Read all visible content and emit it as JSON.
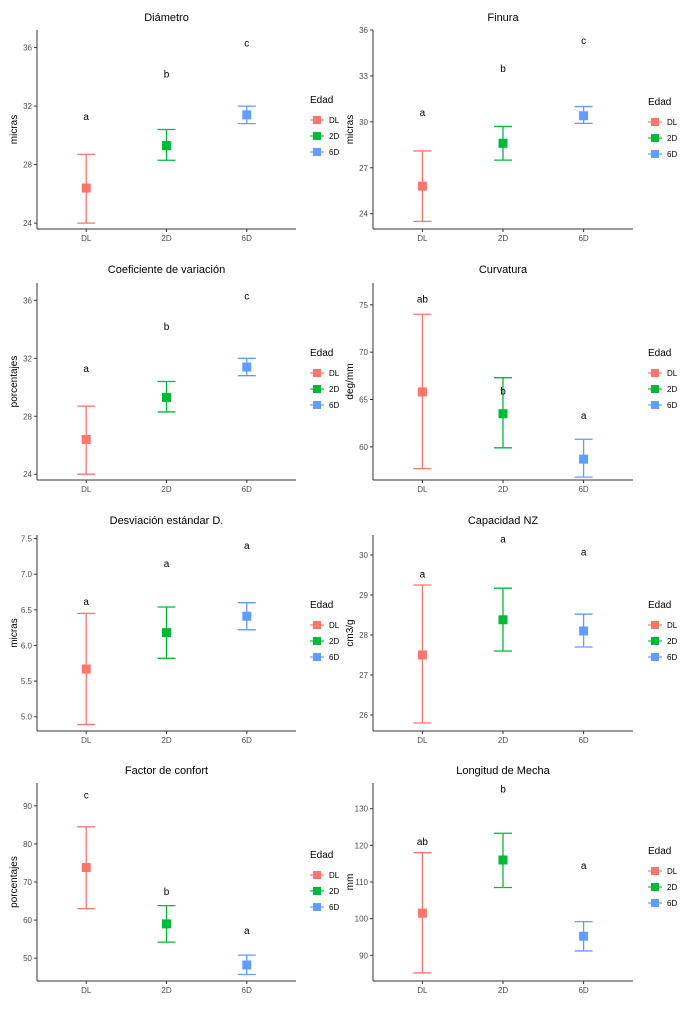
{
  "chart_data": [
    {
      "type": "scatter",
      "title": "Diámetro",
      "ylabel": "micras",
      "categories": [
        "DL",
        "2D",
        "6D"
      ],
      "ylim": [
        23.6,
        37.2
      ],
      "yticks": [
        "24",
        "28",
        "32",
        "36"
      ],
      "ytick_values": [
        24,
        28,
        32,
        36
      ],
      "points": [
        {
          "group": "DL",
          "mean": 26.4,
          "low": 24.0,
          "high": 28.7,
          "letter": "a",
          "letter_y": 31.3
        },
        {
          "group": "2D",
          "mean": 29.3,
          "low": 28.3,
          "high": 30.4,
          "letter": "b",
          "letter_y": 34.2
        },
        {
          "group": "6D",
          "mean": 31.4,
          "low": 30.8,
          "high": 32.0,
          "letter": "c",
          "letter_y": 36.3
        }
      ],
      "legend_title": "Edad",
      "legend": [
        "DL",
        "2D",
        "6D"
      ],
      "grid": false,
      "legend_position": "right"
    },
    {
      "type": "scatter",
      "title": "Finura",
      "ylabel": "micras",
      "categories": [
        "DL",
        "2D",
        "6D"
      ],
      "ylim": [
        23.0,
        36.0
      ],
      "yticks": [
        "24",
        "27",
        "30",
        "33",
        "36"
      ],
      "ytick_values": [
        24,
        27,
        30,
        33,
        36
      ],
      "points": [
        {
          "group": "DL",
          "mean": 25.8,
          "low": 23.5,
          "high": 28.1,
          "letter": "a",
          "letter_y": 30.6
        },
        {
          "group": "2D",
          "mean": 28.6,
          "low": 27.5,
          "high": 29.7,
          "letter": "b",
          "letter_y": 33.5
        },
        {
          "group": "6D",
          "mean": 30.4,
          "low": 29.9,
          "high": 31.0,
          "letter": "c",
          "letter_y": 35.3
        }
      ],
      "legend_title": "Edad",
      "legend": [
        "DL",
        "2D",
        "6D"
      ],
      "grid": false,
      "legend_position": "right"
    },
    {
      "type": "scatter",
      "title": "Coeficiente de variación",
      "ylabel": "porcentajes",
      "categories": [
        "DL",
        "2D",
        "6D"
      ],
      "ylim": [
        23.6,
        37.2
      ],
      "yticks": [
        "24",
        "28",
        "32",
        "36"
      ],
      "ytick_values": [
        24,
        28,
        32,
        36
      ],
      "points": [
        {
          "group": "DL",
          "mean": 26.4,
          "low": 24.0,
          "high": 28.7,
          "letter": "a",
          "letter_y": 31.3
        },
        {
          "group": "2D",
          "mean": 29.3,
          "low": 28.3,
          "high": 30.4,
          "letter": "b",
          "letter_y": 34.2
        },
        {
          "group": "6D",
          "mean": 31.4,
          "low": 30.8,
          "high": 32.0,
          "letter": "c",
          "letter_y": 36.3
        }
      ],
      "legend_title": "Edad",
      "legend": [
        "DL",
        "2D",
        "6D"
      ],
      "grid": false,
      "legend_position": "right"
    },
    {
      "type": "scatter",
      "title": "Curvatura",
      "ylabel": "deg/mm",
      "categories": [
        "DL",
        "2D",
        "6D"
      ],
      "ylim": [
        56.5,
        77.3
      ],
      "yticks": [
        "60",
        "65",
        "70",
        "75"
      ],
      "ytick_values": [
        60,
        65,
        70,
        75
      ],
      "points": [
        {
          "group": "DL",
          "mean": 65.8,
          "low": 57.7,
          "high": 74.0,
          "letter": "ab",
          "letter_y": 75.6
        },
        {
          "group": "2D",
          "mean": 63.5,
          "low": 59.9,
          "high": 67.3,
          "letter": "b",
          "letter_y": 65.9
        },
        {
          "group": "6D",
          "mean": 58.7,
          "low": 56.8,
          "high": 60.8,
          "letter": "a",
          "letter_y": 63.3
        }
      ],
      "legend_title": "Edad",
      "legend": [
        "DL",
        "2D",
        "6D"
      ],
      "grid": false,
      "legend_position": "right"
    },
    {
      "type": "scatter",
      "title": "Desviación estándar D.",
      "ylabel": "micras",
      "categories": [
        "DL",
        "2D",
        "6D"
      ],
      "ylim": [
        4.8,
        7.55
      ],
      "yticks": [
        "5.0",
        "5.5",
        "6.0",
        "6.5",
        "7.0",
        "7.5"
      ],
      "ytick_values": [
        5.0,
        5.5,
        6.0,
        6.5,
        7.0,
        7.5
      ],
      "points": [
        {
          "group": "DL",
          "mean": 5.67,
          "low": 4.89,
          "high": 6.45,
          "letter": "a",
          "letter_y": 6.62
        },
        {
          "group": "2D",
          "mean": 6.18,
          "low": 5.82,
          "high": 6.54,
          "letter": "a",
          "letter_y": 7.15
        },
        {
          "group": "6D",
          "mean": 6.41,
          "low": 6.22,
          "high": 6.6,
          "letter": "a",
          "letter_y": 7.4
        }
      ],
      "legend_title": "Edad",
      "legend": [
        "DL",
        "2D",
        "6D"
      ],
      "grid": false,
      "legend_position": "right"
    },
    {
      "type": "scatter",
      "title": "Capacidad NZ",
      "ylabel": "cm3/g",
      "categories": [
        "DL",
        "2D",
        "6D"
      ],
      "ylim": [
        25.6,
        30.5
      ],
      "yticks": [
        "26",
        "27",
        "28",
        "29",
        "30"
      ],
      "ytick_values": [
        26,
        27,
        28,
        29,
        30
      ],
      "points": [
        {
          "group": "DL",
          "mean": 27.5,
          "low": 25.8,
          "high": 29.25,
          "letter": "a",
          "letter_y": 29.52
        },
        {
          "group": "2D",
          "mean": 28.38,
          "low": 27.6,
          "high": 29.17,
          "letter": "a",
          "letter_y": 30.4
        },
        {
          "group": "6D",
          "mean": 28.1,
          "low": 27.7,
          "high": 28.52,
          "letter": "a",
          "letter_y": 30.07
        }
      ],
      "legend_title": "Edad",
      "legend": [
        "DL",
        "2D",
        "6D"
      ],
      "grid": false,
      "legend_position": "right"
    },
    {
      "type": "scatter",
      "title": "Factor de confort",
      "ylabel": "porcentajes",
      "categories": [
        "DL",
        "2D",
        "6D"
      ],
      "ylim": [
        44.0,
        96.0
      ],
      "yticks": [
        "50",
        "60",
        "70",
        "80",
        "90"
      ],
      "ytick_values": [
        50,
        60,
        70,
        80,
        90
      ],
      "points": [
        {
          "group": "DL",
          "mean": 73.8,
          "low": 63.0,
          "high": 84.5,
          "letter": "c",
          "letter_y": 92.8
        },
        {
          "group": "2D",
          "mean": 59.0,
          "low": 54.2,
          "high": 63.8,
          "letter": "b",
          "letter_y": 67.5
        },
        {
          "group": "6D",
          "mean": 48.2,
          "low": 45.7,
          "high": 50.8,
          "letter": "a",
          "letter_y": 57.3
        }
      ],
      "legend_title": "Edad",
      "legend": [
        "DL",
        "2D",
        "6D"
      ],
      "grid": false,
      "legend_position": "right"
    },
    {
      "type": "scatter",
      "title": "Longitud de Mecha",
      "ylabel": "mm",
      "categories": [
        "DL",
        "2D",
        "6D"
      ],
      "ylim": [
        83.0,
        137.0
      ],
      "yticks": [
        "90",
        "100",
        "110",
        "120",
        "130"
      ],
      "ytick_values": [
        90,
        100,
        110,
        120,
        130
      ],
      "points": [
        {
          "group": "DL",
          "mean": 101.5,
          "low": 85.2,
          "high": 118.0,
          "letter": "ab",
          "letter_y": 121.0
        },
        {
          "group": "2D",
          "mean": 116.0,
          "low": 108.5,
          "high": 123.3,
          "letter": "b",
          "letter_y": 135.3
        },
        {
          "group": "6D",
          "mean": 95.2,
          "low": 91.2,
          "high": 99.2,
          "letter": "a",
          "letter_y": 114.5
        }
      ],
      "legend_title": "Edad",
      "legend": [
        "DL",
        "2D",
        "6D"
      ],
      "grid": false,
      "legend_position": "right"
    }
  ],
  "colors": {
    "DL": "#F8766D",
    "2D": "#00BA38",
    "6D": "#619CFF",
    "axis": "#333333",
    "tick_text": "#4d4d4d"
  }
}
